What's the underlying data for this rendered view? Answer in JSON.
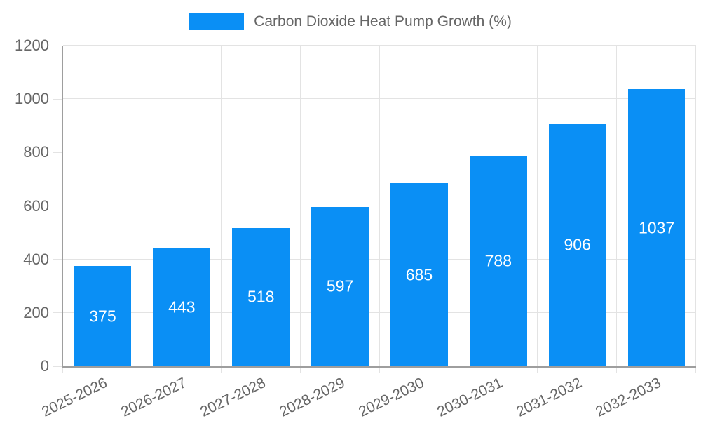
{
  "chart_data": {
    "type": "bar",
    "title": "Carbon Dioxide Heat Pump Growth (%)",
    "categories": [
      "2025-2026",
      "2026-2027",
      "2027-2028",
      "2028-2029",
      "2029-2030",
      "2030-2031",
      "2031-2032",
      "2032-2033"
    ],
    "values": [
      375,
      443,
      518,
      597,
      685,
      788,
      906,
      1037
    ],
    "xlabel": "",
    "ylabel": "",
    "ylim": [
      0,
      1200
    ],
    "yticks": [
      0,
      200,
      400,
      600,
      800,
      1000,
      1200
    ],
    "grid": true,
    "bar_value_labels_visible": true,
    "x_tick_rotation_deg": -26,
    "legend": {
      "position": "top",
      "label": "Carbon Dioxide Heat Pump Growth (%)"
    },
    "colors": {
      "bar": "#0a8ff5",
      "bar_label": "#ffffff",
      "axis_text": "#666666",
      "grid": "#e3e3e3",
      "axis_line": "#9e9e9e",
      "background": "#ffffff"
    }
  }
}
